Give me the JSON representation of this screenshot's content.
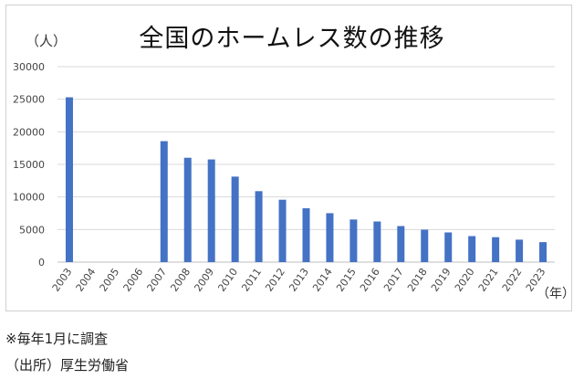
{
  "chart_data": {
    "type": "bar",
    "title": "全国のホームレス数の推移",
    "ylabel": "（人）",
    "xlabel": "（年）",
    "ylim": [
      0,
      30000
    ],
    "yticks": [
      0,
      5000,
      10000,
      15000,
      20000,
      25000,
      30000
    ],
    "grid": true,
    "categories": [
      "2003",
      "2004",
      "2005",
      "2006",
      "2007",
      "2008",
      "2009",
      "2010",
      "2011",
      "2012",
      "2013",
      "2014",
      "2015",
      "2016",
      "2017",
      "2018",
      "2019",
      "2020",
      "2021",
      "2022",
      "2023"
    ],
    "values": [
      25296,
      null,
      null,
      null,
      18564,
      16018,
      15759,
      13124,
      10890,
      9576,
      8265,
      7508,
      6541,
      6235,
      5534,
      4977,
      4555,
      3992,
      3824,
      3448,
      3065
    ],
    "bar_color": "#4472C4"
  },
  "notes": {
    "survey": "※毎年1月に調査",
    "source": "（出所）厚生労働省"
  }
}
